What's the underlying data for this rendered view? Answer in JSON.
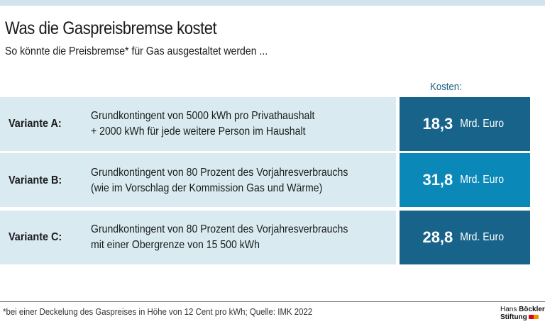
{
  "title": "Was die Gaspreisbremse kostet",
  "subtitle": "So könnte die Preisbremse* für Gas ausgestaltet werden ...",
  "cost_header": "Kosten:",
  "variants": [
    {
      "label": "Variante A:",
      "line1": "Grundkontingent von 5000 kWh pro Privathaushalt",
      "line2": "+ 2000 kWh für jede weitere Person im Haushalt",
      "value": "18,3",
      "unit": "Mrd. Euro",
      "color": "#176389"
    },
    {
      "label": "Variante B:",
      "line1": "Grundkontingent von 80 Prozent des Vorjahresverbrauchs",
      "line2": "(wie im Vorschlag der Kommission Gas und Wärme)",
      "value": "31,8",
      "unit": "Mrd. Euro",
      "color": "#0a88b7"
    },
    {
      "label": "Variante C:",
      "line1": "Grundkontingent von 80 Prozent des Vorjahresverbrauchs",
      "line2": "mit einer Obergrenze von 15 500 kWh",
      "value": "28,8",
      "unit": "Mrd. Euro",
      "color": "#176389"
    }
  ],
  "footnote": "*bei einer Deckelung des Gaspreises in Höhe von 12 Cent pro kWh; Quelle: IMK 2022",
  "logo": {
    "line1a": "Hans",
    "line1b": "Böckler",
    "line2": "Stiftung",
    "colors": [
      "#e2001a",
      "#f39200"
    ]
  }
}
